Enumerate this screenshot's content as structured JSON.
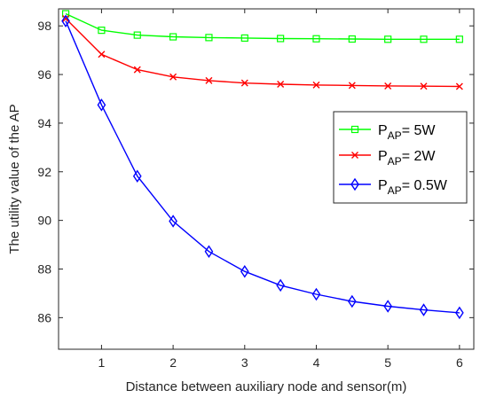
{
  "chart_data": {
    "type": "line",
    "title": "",
    "xlabel": "Distance between auxiliary node and sensor(m)",
    "ylabel": "The utility value of the AP",
    "xlim": [
      0.4,
      6.2
    ],
    "ylim": [
      84.7,
      98.7
    ],
    "xticks": [
      1,
      2,
      3,
      4,
      5,
      6
    ],
    "yticks": [
      86,
      88,
      90,
      92,
      94,
      96,
      98
    ],
    "x": [
      0.5,
      1,
      1.5,
      2,
      2.5,
      3,
      3.5,
      4,
      4.5,
      5,
      5.5,
      6
    ],
    "grid": false,
    "legend_position": "right",
    "series": [
      {
        "name": "P_AP= 5W",
        "legend_main": "P",
        "legend_sub": "AP",
        "legend_rest": "= 5W",
        "color": "#00ff00",
        "marker": "square",
        "values": [
          98.5,
          97.82,
          97.62,
          97.55,
          97.52,
          97.5,
          97.48,
          97.47,
          97.46,
          97.45,
          97.45,
          97.45
        ]
      },
      {
        "name": "P_AP= 2W",
        "legend_main": "P",
        "legend_sub": "AP",
        "legend_rest": "= 2W",
        "color": "#ff0000",
        "marker": "x",
        "values": [
          98.3,
          96.83,
          96.2,
          95.9,
          95.75,
          95.65,
          95.6,
          95.57,
          95.55,
          95.53,
          95.52,
          95.51
        ]
      },
      {
        "name": "P_AP= 0.5W",
        "legend_main": "P",
        "legend_sub": "AP",
        "legend_rest": "= 0.5W",
        "color": "#0000ff",
        "marker": "diamond",
        "values": [
          98.2,
          94.75,
          91.82,
          89.97,
          88.72,
          87.9,
          87.33,
          86.96,
          86.67,
          86.47,
          86.32,
          86.2
        ]
      }
    ]
  }
}
